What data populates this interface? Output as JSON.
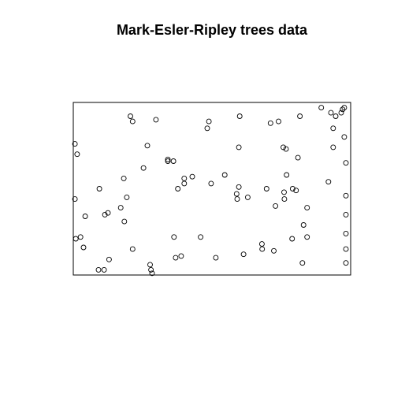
{
  "chart_data": {
    "type": "scatter",
    "title": "Mark-Esler-Ripley trees data",
    "xlabel": "",
    "ylabel": "",
    "xlim": [
      0,
      1
    ],
    "ylim": [
      0,
      1
    ],
    "axes_visible": false,
    "frame": true,
    "grid": false,
    "marker": "open-circle",
    "colors": {
      "marker": "#000000",
      "frame": "#000000",
      "background": "#ffffff"
    },
    "points": [
      [
        0.006,
        0.76
      ],
      [
        0.014,
        0.7
      ],
      [
        0.006,
        0.44
      ],
      [
        0.026,
        0.22
      ],
      [
        0.009,
        0.21
      ],
      [
        0.037,
        0.16
      ],
      [
        0.043,
        0.34
      ],
      [
        0.094,
        0.5
      ],
      [
        0.114,
        0.35
      ],
      [
        0.125,
        0.36
      ],
      [
        0.129,
        0.09
      ],
      [
        0.091,
        0.03
      ],
      [
        0.111,
        0.03
      ],
      [
        0.171,
        0.39
      ],
      [
        0.184,
        0.31
      ],
      [
        0.193,
        0.45
      ],
      [
        0.182,
        0.56
      ],
      [
        0.206,
        0.92
      ],
      [
        0.214,
        0.89
      ],
      [
        0.214,
        0.15
      ],
      [
        0.253,
        0.62
      ],
      [
        0.267,
        0.75
      ],
      [
        0.298,
        0.9
      ],
      [
        0.277,
        0.06
      ],
      [
        0.28,
        0.03
      ],
      [
        0.284,
        0.01
      ],
      [
        0.341,
        0.67
      ],
      [
        0.341,
        0.66
      ],
      [
        0.361,
        0.66
      ],
      [
        0.363,
        0.22
      ],
      [
        0.369,
        0.1
      ],
      [
        0.377,
        0.5
      ],
      [
        0.389,
        0.11
      ],
      [
        0.4,
        0.53
      ],
      [
        0.4,
        0.56
      ],
      [
        0.429,
        0.57
      ],
      [
        0.459,
        0.22
      ],
      [
        0.489,
        0.89
      ],
      [
        0.483,
        0.85
      ],
      [
        0.497,
        0.53
      ],
      [
        0.514,
        0.1
      ],
      [
        0.546,
        0.58
      ],
      [
        0.589,
        0.47
      ],
      [
        0.591,
        0.44
      ],
      [
        0.597,
        0.51
      ],
      [
        0.6,
        0.92
      ],
      [
        0.597,
        0.74
      ],
      [
        0.614,
        0.12
      ],
      [
        0.629,
        0.45
      ],
      [
        0.68,
        0.18
      ],
      [
        0.681,
        0.15
      ],
      [
        0.697,
        0.5
      ],
      [
        0.711,
        0.88
      ],
      [
        0.723,
        0.14
      ],
      [
        0.729,
        0.4
      ],
      [
        0.74,
        0.89
      ],
      [
        0.76,
        0.48
      ],
      [
        0.761,
        0.44
      ],
      [
        0.757,
        0.74
      ],
      [
        0.767,
        0.73
      ],
      [
        0.769,
        0.58
      ],
      [
        0.789,
        0.21
      ],
      [
        0.791,
        0.5
      ],
      [
        0.81,
        0.68
      ],
      [
        0.817,
        0.92
      ],
      [
        0.83,
        0.29
      ],
      [
        0.843,
        0.39
      ],
      [
        0.843,
        0.22
      ],
      [
        0.826,
        0.07
      ],
      [
        0.803,
        0.49
      ],
      [
        0.92,
        0.54
      ],
      [
        0.894,
        0.97
      ],
      [
        0.929,
        0.94
      ],
      [
        0.937,
        0.74
      ],
      [
        0.937,
        0.85
      ],
      [
        0.946,
        0.92
      ],
      [
        0.966,
        0.94
      ],
      [
        0.971,
        0.96
      ],
      [
        0.977,
        0.97
      ],
      [
        0.977,
        0.8
      ],
      [
        0.983,
        0.65
      ],
      [
        0.983,
        0.46
      ],
      [
        0.983,
        0.35
      ],
      [
        0.983,
        0.24
      ],
      [
        0.983,
        0.15
      ],
      [
        0.983,
        0.07
      ]
    ]
  }
}
